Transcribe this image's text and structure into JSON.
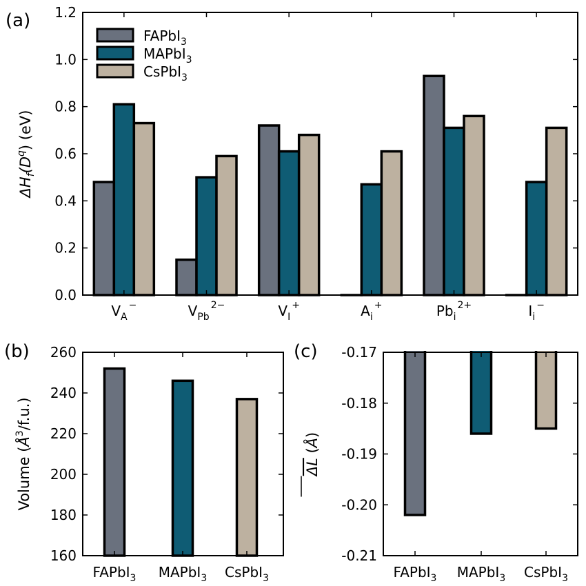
{
  "colors": {
    "FAPbI3": "#6a717e",
    "MAPbI3": "#0f5c74",
    "CsPbI3": "#bdb1a0",
    "edge": "#000000"
  },
  "chart_data": [
    {
      "type": "bar",
      "panel_label": "(a)",
      "ylabel_parts": [
        "ΔH",
        "f",
        "(D",
        "q",
        ") (eV)"
      ],
      "ylim": [
        0.0,
        1.2
      ],
      "yticks": [
        "0.0",
        "0.2",
        "0.4",
        "0.6",
        "0.8",
        "1.0",
        "1.2"
      ],
      "categories": [
        {
          "base": "V",
          "sub": "A",
          "sup": "−"
        },
        {
          "base": "V",
          "sub": "Pb",
          "sup": "2−"
        },
        {
          "base": "V",
          "sub": "I",
          "sup": "+"
        },
        {
          "base": "A",
          "sub": "i",
          "sup": "+"
        },
        {
          "base": "Pb",
          "sub": "i",
          "sup": "2+"
        },
        {
          "base": "I",
          "sub": "i",
          "sup": "−"
        }
      ],
      "series": [
        {
          "key": "FAPbI3",
          "name": "FAPbI",
          "sub": "3",
          "values": [
            0.48,
            0.15,
            0.72,
            0.0,
            0.93,
            0.0
          ]
        },
        {
          "key": "MAPbI3",
          "name": "MAPbI",
          "sub": "3",
          "values": [
            0.81,
            0.5,
            0.61,
            0.47,
            0.71,
            0.48
          ]
        },
        {
          "key": "CsPbI3",
          "name": "CsPbI",
          "sub": "3",
          "values": [
            0.73,
            0.59,
            0.68,
            0.61,
            0.76,
            0.71
          ]
        }
      ],
      "legend": "top-left"
    },
    {
      "type": "bar",
      "panel_label": "(b)",
      "ylabel_parts": [
        "Volume (",
        "Å",
        "3",
        "/f.u.)"
      ],
      "ylim": [
        160,
        260
      ],
      "yticks": [
        "160",
        "180",
        "200",
        "220",
        "240",
        "260"
      ],
      "categories": [
        {
          "key": "FAPbI3",
          "base": "FAPbI",
          "sub": "3"
        },
        {
          "key": "MAPbI3",
          "base": "MAPbI",
          "sub": "3"
        },
        {
          "key": "CsPbI3",
          "base": "CsPbI",
          "sub": "3"
        }
      ],
      "values": [
        252,
        246,
        237
      ]
    },
    {
      "type": "bar",
      "panel_label": "(c)",
      "ylabel_parts": [
        "ΔL",
        " (",
        "Å",
        ")"
      ],
      "ylim": [
        -0.21,
        -0.17
      ],
      "yticks": [
        "-0.21",
        "-0.20",
        "-0.19",
        "-0.18",
        "-0.17"
      ],
      "categories": [
        {
          "key": "FAPbI3",
          "base": "FAPbI",
          "sub": "3"
        },
        {
          "key": "MAPbI3",
          "base": "MAPbI",
          "sub": "3"
        },
        {
          "key": "CsPbI3",
          "base": "CsPbI",
          "sub": "3"
        }
      ],
      "values": [
        -0.202,
        -0.186,
        -0.185
      ]
    }
  ]
}
